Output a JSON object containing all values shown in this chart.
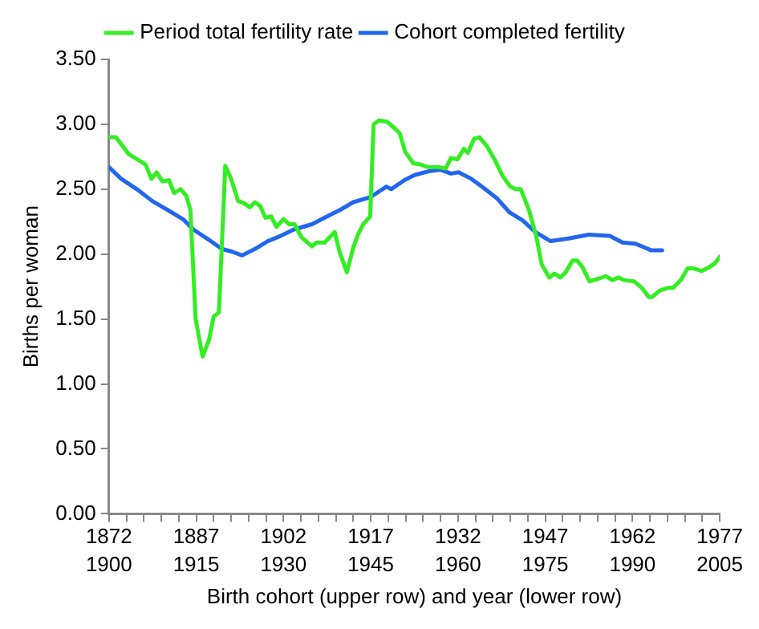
{
  "chart_data": {
    "type": "line",
    "xlabel": "Birth cohort (upper row) and year (lower row)",
    "ylabel": "Births per woman",
    "legend": "top",
    "grid": false,
    "marker": "none",
    "line_style": "solid",
    "xlim": [
      1900,
      2005
    ],
    "xticks": [
      1900,
      1915,
      1930,
      1945,
      1960,
      1975,
      1990,
      2005
    ],
    "x2lim": [
      1872,
      1977
    ],
    "x2ticks": [
      1872,
      {
        "value": 1875,
        "label": null
      },
      {
        "value": 1878,
        "label": null
      },
      {
        "value": 1881,
        "label": null
      },
      {
        "value": 1884,
        "label": null
      },
      1887,
      {
        "value": 1890,
        "label": null
      },
      {
        "value": 1893,
        "label": null
      },
      {
        "value": 1896,
        "label": null
      },
      {
        "value": 1899,
        "label": null
      },
      1902,
      {
        "value": 1905,
        "label": null
      },
      {
        "value": 1908,
        "label": null
      },
      {
        "value": 1911,
        "label": null
      },
      {
        "value": 1914,
        "label": null
      },
      1917,
      {
        "value": 1920,
        "label": null
      },
      {
        "value": 1923,
        "label": null
      },
      {
        "value": 1926,
        "label": null
      },
      {
        "value": 1929,
        "label": null
      },
      1932,
      {
        "value": 1935,
        "label": null
      },
      {
        "value": 1938,
        "label": null
      },
      {
        "value": 1941,
        "label": null
      },
      {
        "value": 1944,
        "label": null
      },
      1947,
      {
        "value": 1950,
        "label": null
      },
      {
        "value": 1953,
        "label": null
      },
      {
        "value": 1956,
        "label": null
      },
      {
        "value": 1959,
        "label": null
      },
      1962,
      {
        "value": 1965,
        "label": null
      },
      {
        "value": 1968,
        "label": null
      },
      {
        "value": 1971,
        "label": null
      },
      {
        "value": 1974,
        "label": null
      },
      1977
    ],
    "ylim": [
      0,
      3.5
    ],
    "yticks": [
      {
        "value": 0,
        "label": "0.00"
      },
      {
        "value": 0.5,
        "label": "0.50"
      },
      {
        "value": 1,
        "label": "1.00"
      },
      {
        "value": 1.5,
        "label": "1.50"
      },
      {
        "value": 2,
        "label": "2.00"
      },
      {
        "value": 2.5,
        "label": "2.50"
      },
      {
        "value": 3,
        "label": "3.00"
      },
      {
        "value": 3.5,
        "label": "3.50"
      }
    ],
    "series": [
      {
        "name": "Period total fertility rate",
        "color": "#33ee22",
        "x": [
          1900,
          1901.2,
          1903.4,
          1905.6,
          1906.3,
          1907.3,
          1908.2,
          1909.2,
          1910.3,
          1911.2,
          1912.3,
          1913.3,
          1914,
          1914.9,
          1916.1,
          1917.2,
          1918,
          1918.9,
          1920,
          1921,
          1922.2,
          1923.3,
          1924.2,
          1925.1,
          1926,
          1926.9,
          1927.9,
          1928.8,
          1930,
          1931,
          1931.9,
          1933.1,
          1934.9,
          1935.7,
          1937.1,
          1938.8,
          1939.7,
          1940.9,
          1942,
          1942.8,
          1943.7,
          1944.9,
          1945.5,
          1946.4,
          1947.8,
          1949.1,
          1950,
          1950.9,
          1952.3,
          1953.6,
          1954.9,
          1956.6,
          1957.9,
          1958.8,
          1959.9,
          1961,
          1961.7,
          1962.8,
          1963.7,
          1965,
          1966.4,
          1967.7,
          1969,
          1969.9,
          1970.8,
          1972.2,
          1973.5,
          1974.4,
          1975.7,
          1976.6,
          1977.6,
          1978.5,
          1979.7,
          1980.5,
          1981.4,
          1982.6,
          1984.1,
          1985.4,
          1986.5,
          1987.6,
          1988.5,
          1990.3,
          1991.6,
          1992.8,
          1993.4,
          1994.7,
          1996.1,
          1997,
          1998.3,
          1999.5,
          2000.5,
          2001.9,
          2003.2,
          2004.2,
          2005
        ],
        "values": [
          2.9,
          2.9,
          2.77,
          2.71,
          2.69,
          2.58,
          2.63,
          2.56,
          2.57,
          2.47,
          2.5,
          2.45,
          2.34,
          1.5,
          1.21,
          1.34,
          1.52,
          1.55,
          2.68,
          2.58,
          2.41,
          2.39,
          2.36,
          2.4,
          2.37,
          2.28,
          2.29,
          2.21,
          2.27,
          2.23,
          2.23,
          2.13,
          2.06,
          2.09,
          2.09,
          2.17,
          2.01,
          1.86,
          2.05,
          2.15,
          2.23,
          2.29,
          3,
          3.03,
          3.02,
          2.97,
          2.93,
          2.79,
          2.7,
          2.69,
          2.67,
          2.67,
          2.66,
          2.74,
          2.73,
          2.81,
          2.78,
          2.89,
          2.9,
          2.83,
          2.72,
          2.6,
          2.52,
          2.5,
          2.5,
          2.34,
          2.13,
          1.92,
          1.82,
          1.85,
          1.82,
          1.86,
          1.95,
          1.95,
          1.9,
          1.79,
          1.81,
          1.83,
          1.8,
          1.82,
          1.8,
          1.79,
          1.74,
          1.67,
          1.67,
          1.72,
          1.74,
          1.74,
          1.8,
          1.89,
          1.89,
          1.87,
          1.9,
          1.93,
          1.98
        ]
      },
      {
        "name": "Cohort completed fertility",
        "color": "#2266ee",
        "x": [
          1900,
          1902.1,
          1904.8,
          1907.4,
          1910.1,
          1912.7,
          1914.5,
          1917.2,
          1919.4,
          1921.1,
          1922.9,
          1925.1,
          1927.3,
          1929.5,
          1931.8,
          1934.9,
          1937.5,
          1939.7,
          1942,
          1945,
          1947.7,
          1948.5,
          1950.8,
          1952.6,
          1955.2,
          1957,
          1958.8,
          1960.1,
          1962.3,
          1964.1,
          1966.7,
          1968.9,
          1971.1,
          1973.3,
          1975.9,
          1979,
          1982.5,
          1986.1,
          1988.3,
          1990.5,
          1993.2,
          1995.1
        ],
        "values": [
          2.67,
          2.58,
          2.5,
          2.41,
          2.34,
          2.27,
          2.19,
          2.11,
          2.04,
          2.02,
          1.99,
          2.04,
          2.1,
          2.14,
          2.19,
          2.23,
          2.29,
          2.34,
          2.4,
          2.44,
          2.52,
          2.5,
          2.57,
          2.61,
          2.64,
          2.65,
          2.62,
          2.63,
          2.58,
          2.52,
          2.43,
          2.32,
          2.26,
          2.17,
          2.1,
          2.12,
          2.15,
          2.14,
          2.09,
          2.08,
          2.03,
          2.03
        ]
      }
    ]
  }
}
